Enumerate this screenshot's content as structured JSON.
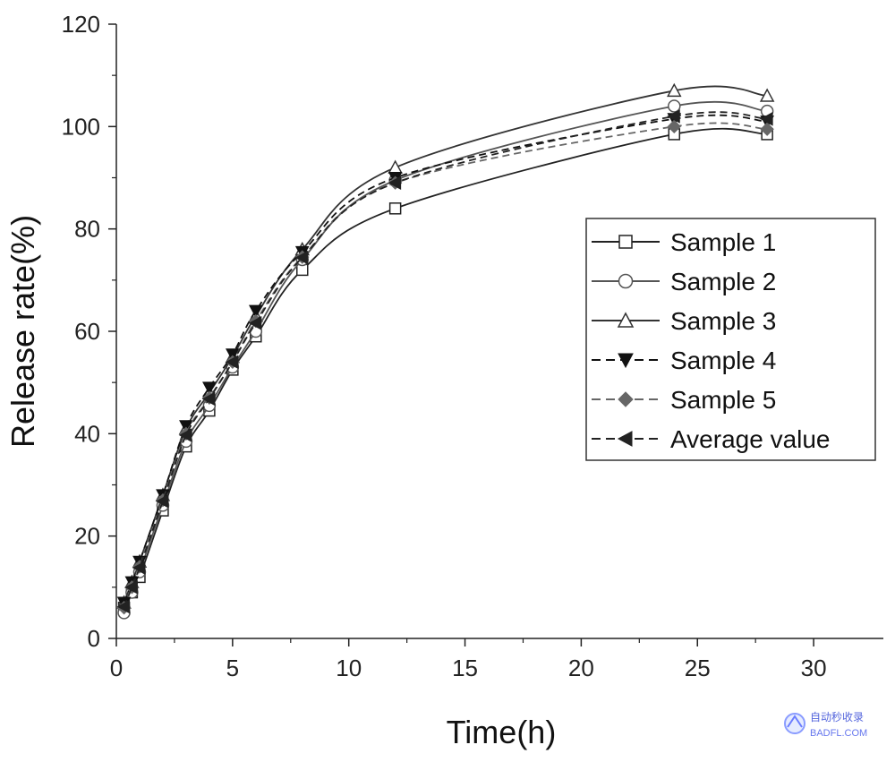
{
  "chart_data": {
    "type": "line",
    "title": "",
    "xlabel": "Time(h)",
    "ylabel": "Release rate(%)",
    "xlim": [
      0,
      33
    ],
    "ylim": [
      0,
      120
    ],
    "xticks": [
      0,
      5,
      10,
      15,
      20,
      25,
      30
    ],
    "yticks": [
      0,
      20,
      40,
      60,
      80,
      100,
      120
    ],
    "grid": false,
    "legend_position": "right",
    "x": [
      0.33,
      0.67,
      1,
      2,
      3,
      4,
      5,
      6,
      8,
      12,
      24,
      28
    ],
    "series": [
      {
        "name": "Sample 1",
        "marker": "square-open",
        "dash": "solid",
        "color": "#222222",
        "values": [
          6,
          9,
          12,
          25,
          37.5,
          44.5,
          52.5,
          59,
          72,
          84,
          98.5,
          98.5
        ]
      },
      {
        "name": "Sample 2",
        "marker": "circle-open",
        "dash": "solid",
        "color": "#555555",
        "values": [
          5,
          9,
          13,
          26,
          38.5,
          45.5,
          53,
          60,
          74,
          89.5,
          104,
          103
        ]
      },
      {
        "name": "Sample 3",
        "marker": "triangle-up-open",
        "dash": "solid",
        "color": "#333333",
        "values": [
          7,
          11,
          15,
          28,
          41,
          48,
          55,
          63,
          76,
          92,
          107,
          106
        ]
      },
      {
        "name": "Sample 4",
        "marker": "triangle-down-filled",
        "dash": "dashed",
        "color": "#111111",
        "values": [
          7,
          11,
          15,
          28,
          41.5,
          49,
          55.5,
          64,
          75.5,
          90,
          101.5,
          101
        ]
      },
      {
        "name": "Sample 5",
        "marker": "diamond-filled",
        "dash": "dashed",
        "color": "#666666",
        "values": [
          6,
          10,
          14,
          27,
          40,
          47,
          54,
          62,
          74.5,
          89,
          100,
          99.5
        ]
      },
      {
        "name": "Average value",
        "marker": "triangle-left-filled",
        "dash": "dashed",
        "color": "#222222",
        "values": [
          6.2,
          10,
          13.8,
          26.8,
          39.7,
          46.8,
          54,
          61.6,
          74.4,
          89,
          102,
          101.5
        ]
      }
    ]
  },
  "watermark": {
    "line1": "自动秒收录",
    "line2": "BADFL.COM"
  }
}
